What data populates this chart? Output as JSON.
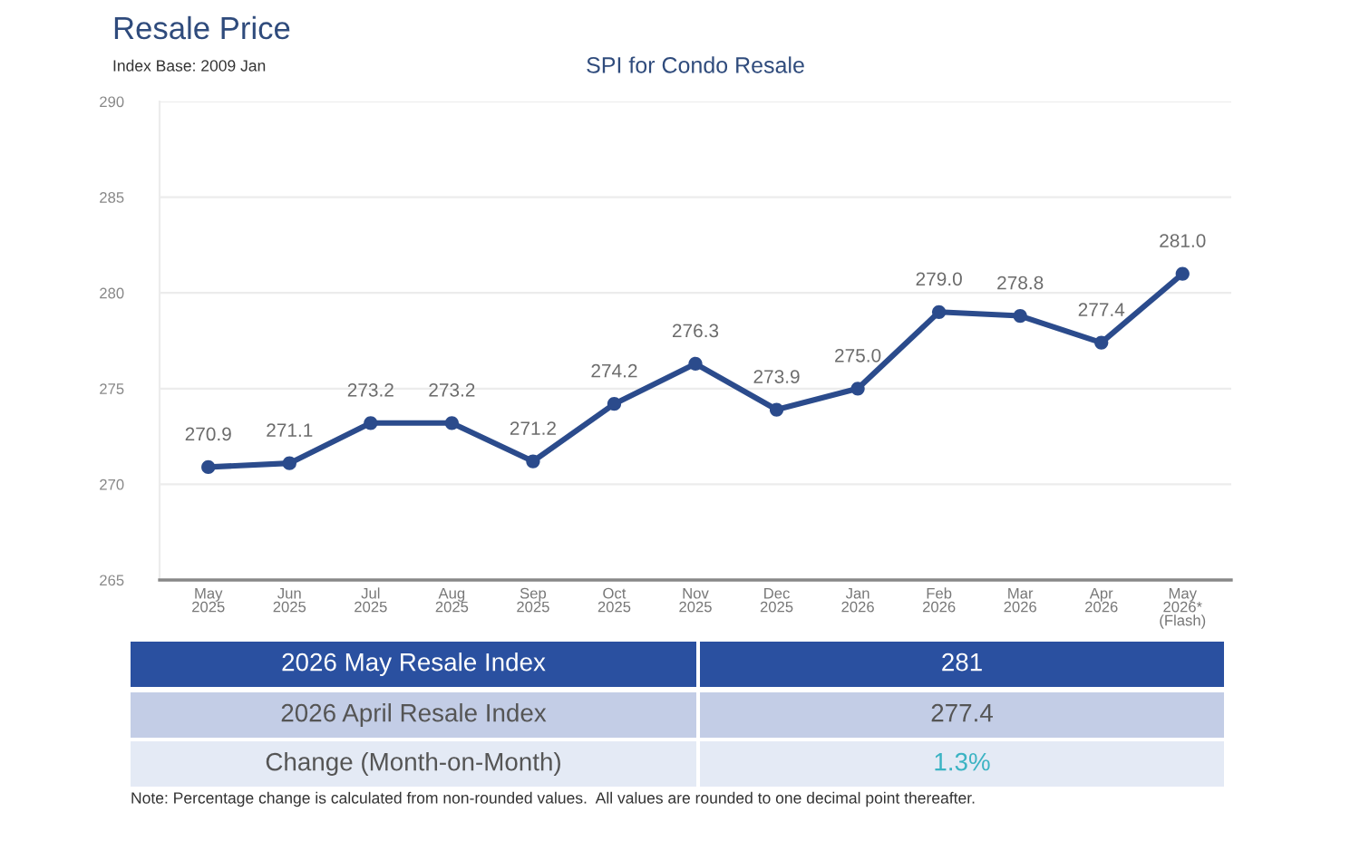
{
  "chart_data": {
    "type": "line",
    "title": "Resale Price",
    "subtitle": "SPI for Condo Resale",
    "categories": [
      "May\n2025",
      "Jun\n2025",
      "Jul\n2025",
      "Aug\n2025",
      "Sep\n2025",
      "Oct\n2025",
      "Nov\n2025",
      "Dec\n2025",
      "Jan\n2026",
      "Feb\n2026",
      "Mar\n2026",
      "Apr\n2026",
      "May\n2026*\n(Flash)"
    ],
    "series": [
      {
        "color": "#2b4b8c",
        "values": [
          270.9,
          271.1,
          273.2,
          273.2,
          271.2,
          274.2,
          276.3,
          273.9,
          275.0,
          279.0,
          278.8,
          277.4,
          281.0
        ],
        "value_labels": [
          "270.9",
          "271.1",
          "273.2",
          "273.2",
          "271.2",
          "274.2",
          "276.3",
          "273.9",
          "275.0",
          "279.0",
          "278.8",
          "277.4",
          "281.0"
        ]
      }
    ],
    "ylim": [
      265,
      290
    ],
    "yticks": [
      265,
      270,
      275,
      280,
      285,
      290
    ],
    "grid": "y",
    "marker": "circle",
    "line_style": "solid",
    "annotations": [
      "Index Base: 2009 Jan",
      "2026 May Resale Index",
      "281",
      "2026 April Resale Index",
      "277.4",
      "Change (Month-on-Month)",
      "1.3%",
      "Note: Percentage change is calculated from non-rounded values.  All values are rounded to one decimal point thereafter."
    ]
  }
}
